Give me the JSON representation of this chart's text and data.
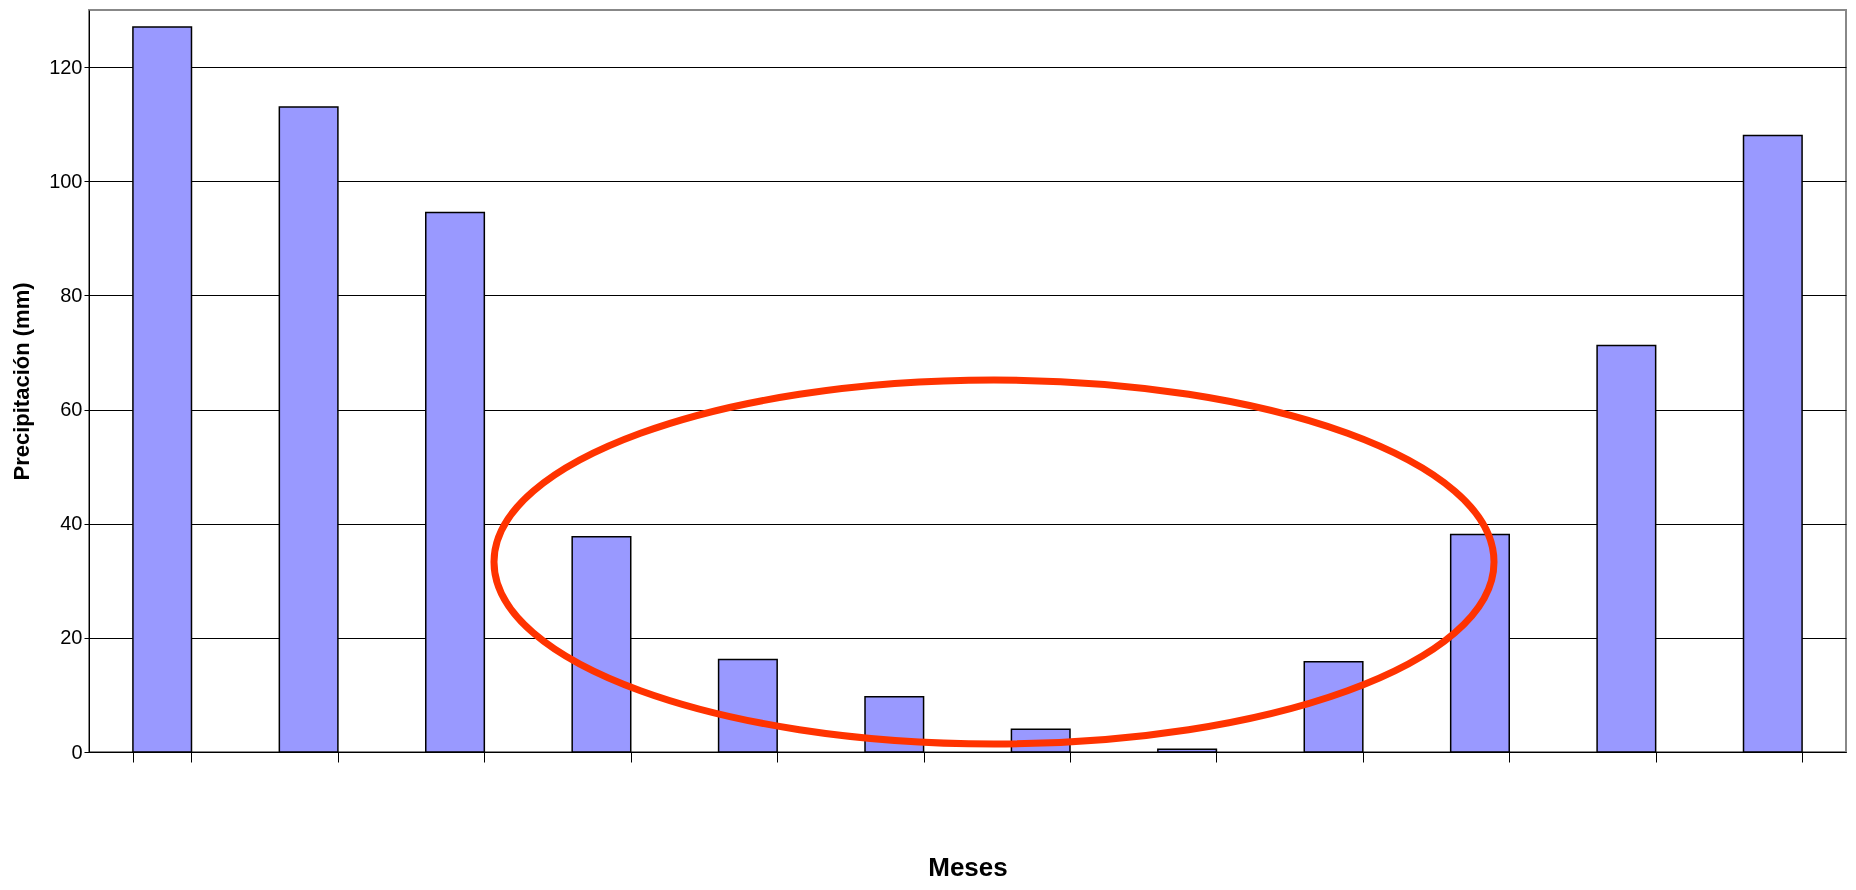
{
  "chart_data": {
    "type": "bar",
    "xlabel": "Meses",
    "ylabel": "Precipitación (mm)",
    "categories": [
      null,
      null,
      null,
      null,
      null,
      null,
      null,
      null,
      null,
      null,
      null,
      null
    ],
    "values": [
      127,
      113,
      94.5,
      37.7,
      16.2,
      9.7,
      4,
      0.5,
      15.8,
      38.1,
      71.2,
      108
    ],
    "color": "#9999ff",
    "ylim": [
      0,
      130
    ],
    "yticks": [
      0,
      20,
      40,
      60,
      80,
      100,
      120
    ],
    "grid": "y"
  }
}
